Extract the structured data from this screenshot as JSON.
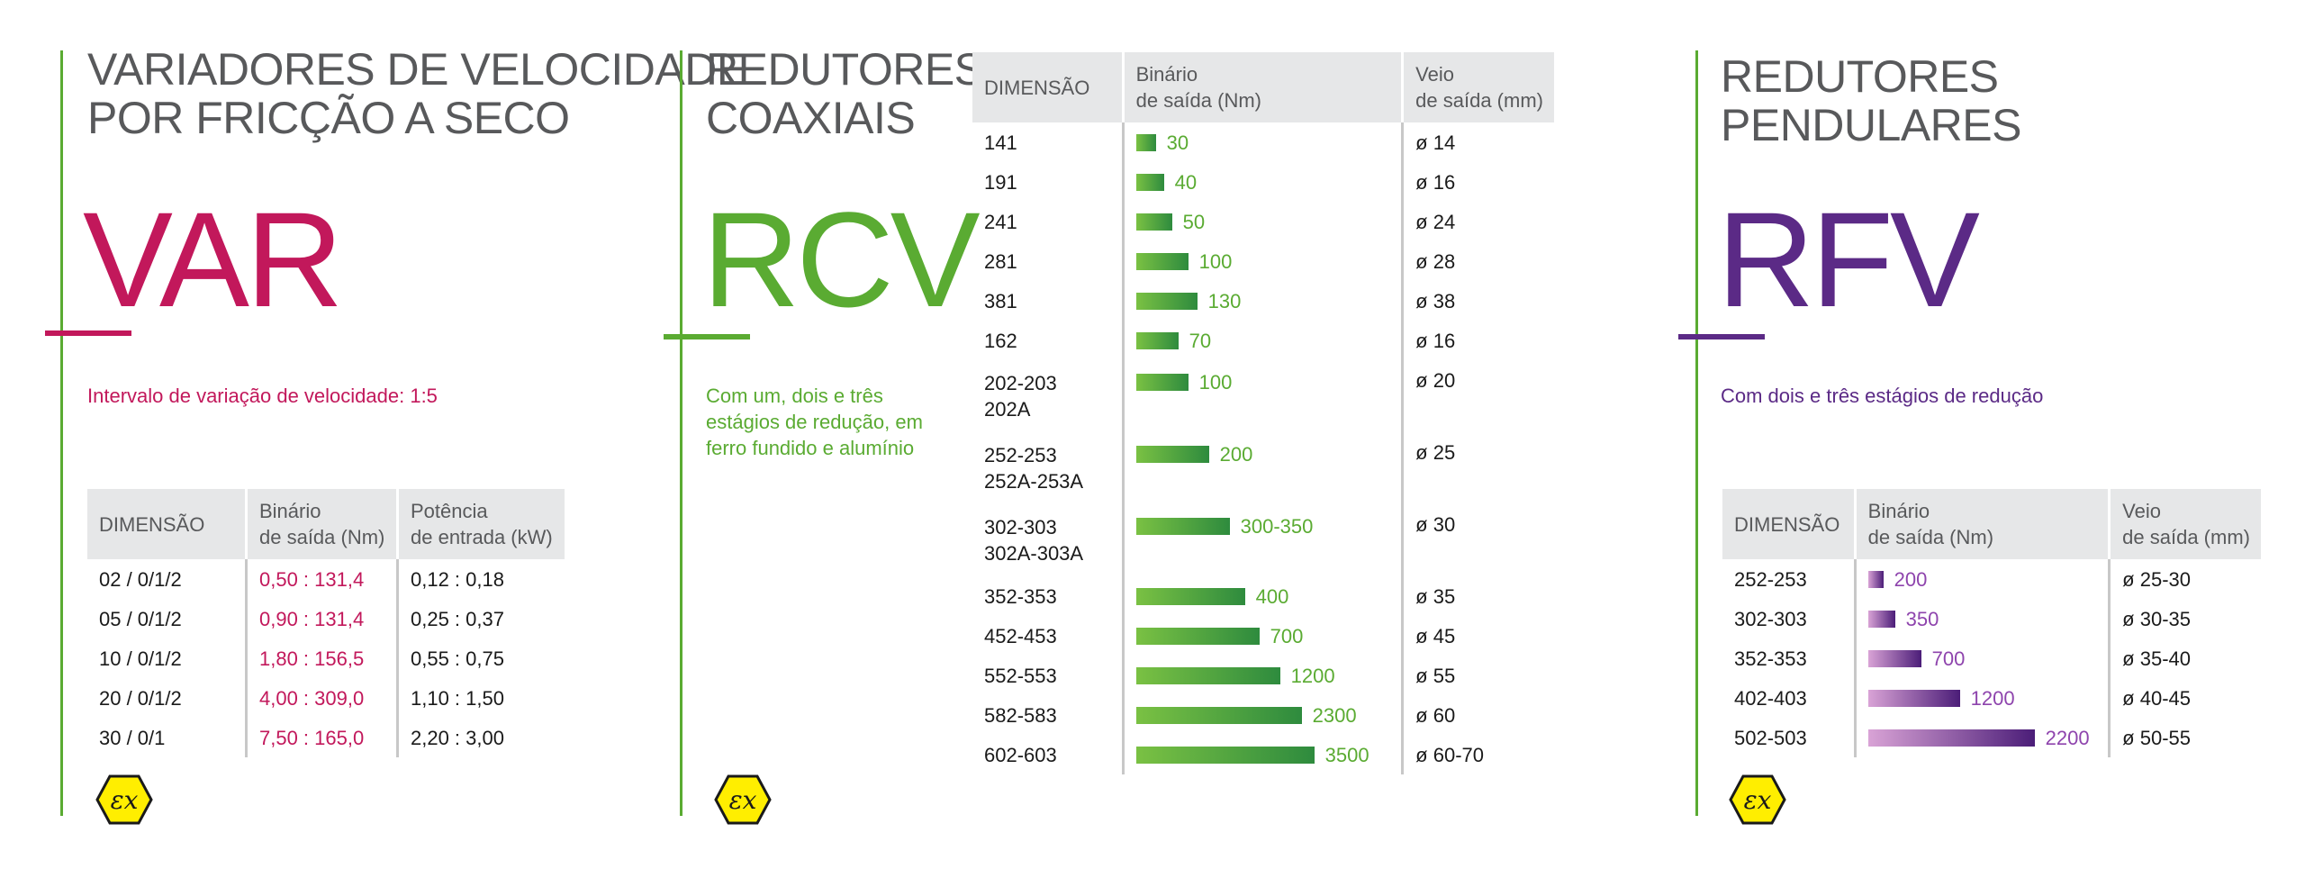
{
  "colors": {
    "var": "#c2185b",
    "rcv": "#5aab32",
    "rfv": "#5b2a86",
    "heading": "#58595b",
    "table_header_bg": "#e6e7e8",
    "divider": "#c8c8c8",
    "ex_fill": "#ffee00"
  },
  "var": {
    "title_lines": [
      "VARIADORES DE VELOCIDADE",
      "POR FRICÇÃO A SECO"
    ],
    "code": "VAR",
    "description": "Intervalo de variação de velocidade: 1:5",
    "headers": {
      "dim": "DIMENSÃO",
      "torque_l1": "Binário",
      "torque_l2": "de saída (Nm)",
      "power_l1": "Potência",
      "power_l2": "de entrada (kW)"
    },
    "rows": [
      {
        "dim": "02  / 0/1/2",
        "torque": "0,50 : 131,4",
        "power": "0,12 : 0,18"
      },
      {
        "dim": "05  / 0/1/2",
        "torque": "0,90 : 131,4",
        "power": "0,25 : 0,37"
      },
      {
        "dim": "10  / 0/1/2",
        "torque": "1,80 : 156,5",
        "power": "0,55 : 0,75"
      },
      {
        "dim": "20  / 0/1/2",
        "torque": "4,00 : 309,0",
        "power": "1,10 : 1,50"
      },
      {
        "dim": "30  / 0/1",
        "torque": "7,50 : 165,0",
        "power": "2,20 : 3,00"
      }
    ],
    "icon": "atex-ex-icon"
  },
  "rcv": {
    "title_lines": [
      "REDUTORES",
      "COAXIAIS"
    ],
    "code": "RCV",
    "description_lines": [
      "Com um, dois e três",
      "estágios de redução, em",
      "ferro fundido e alumínio"
    ],
    "headers": {
      "dim": "DIMENSÃO",
      "torque_l1": "Binário",
      "torque_l2": "de saída (Nm)",
      "shaft_l1": "Veio",
      "shaft_l2": "de saída (mm)"
    },
    "rows": [
      {
        "dim": "141",
        "torque": "30",
        "shaft": "ø 14",
        "bar_fraction": 0.12
      },
      {
        "dim": "191",
        "torque": "40",
        "shaft": "ø 16",
        "bar_fraction": 0.17
      },
      {
        "dim": "241",
        "torque": "50",
        "shaft": "ø 24",
        "bar_fraction": 0.22
      },
      {
        "dim": "281",
        "torque": "100",
        "shaft": "ø 28",
        "bar_fraction": 0.32
      },
      {
        "dim": "381",
        "torque": "130",
        "shaft": "ø 38",
        "bar_fraction": 0.38
      },
      {
        "dim": "162",
        "torque": "70",
        "shaft": "ø 16",
        "bar_fraction": 0.26
      },
      {
        "dim": "202-203",
        "dim2": "202A",
        "torque": "100",
        "shaft": "ø 20",
        "bar_fraction": 0.32
      },
      {
        "dim": "252-253",
        "dim2": "252A-253A",
        "torque": "200",
        "shaft": "ø 25",
        "bar_fraction": 0.45
      },
      {
        "dim": "302-303",
        "dim2": "302A-303A",
        "torque": "300-350",
        "shaft": "ø 30",
        "bar_fraction": 0.58
      },
      {
        "dim": "352-353",
        "torque": "400",
        "shaft": "ø 35",
        "bar_fraction": 0.67
      },
      {
        "dim": "452-453",
        "torque": "700",
        "shaft": "ø 45",
        "bar_fraction": 0.76
      },
      {
        "dim": "552-553",
        "torque": "1200",
        "shaft": "ø 55",
        "bar_fraction": 0.89
      },
      {
        "dim": "582-583",
        "torque": "2300",
        "shaft": "ø 60",
        "bar_fraction": 1.02
      },
      {
        "dim": "602-603",
        "torque": "3500",
        "shaft": "ø 60-70",
        "bar_fraction": 1.1
      }
    ],
    "icon": "atex-ex-icon"
  },
  "rfv": {
    "title_lines": [
      "REDUTORES",
      "PENDULARES"
    ],
    "code": "RFV",
    "description": "Com dois e três estágios de redução",
    "headers": {
      "dim": "DIMENSÃO",
      "torque_l1": "Binário",
      "torque_l2": "de saída (Nm)",
      "shaft_l1": "Veio",
      "shaft_l2": "de saída (mm)"
    },
    "rows": [
      {
        "dim": "252-253",
        "torque": "200",
        "shaft": "ø 25-30",
        "bar_fraction": 0.09
      },
      {
        "dim": "302-303",
        "torque": "350",
        "shaft": "ø 30-35",
        "bar_fraction": 0.16
      },
      {
        "dim": "352-353",
        "torque": "700",
        "shaft": "ø 35-40",
        "bar_fraction": 0.32
      },
      {
        "dim": "402-403",
        "torque": "1200",
        "shaft": "ø 40-45",
        "bar_fraction": 0.55
      },
      {
        "dim": "502-503",
        "torque": "2200",
        "shaft": "ø 50-55",
        "bar_fraction": 1.0
      }
    ],
    "icon": "atex-ex-icon"
  }
}
